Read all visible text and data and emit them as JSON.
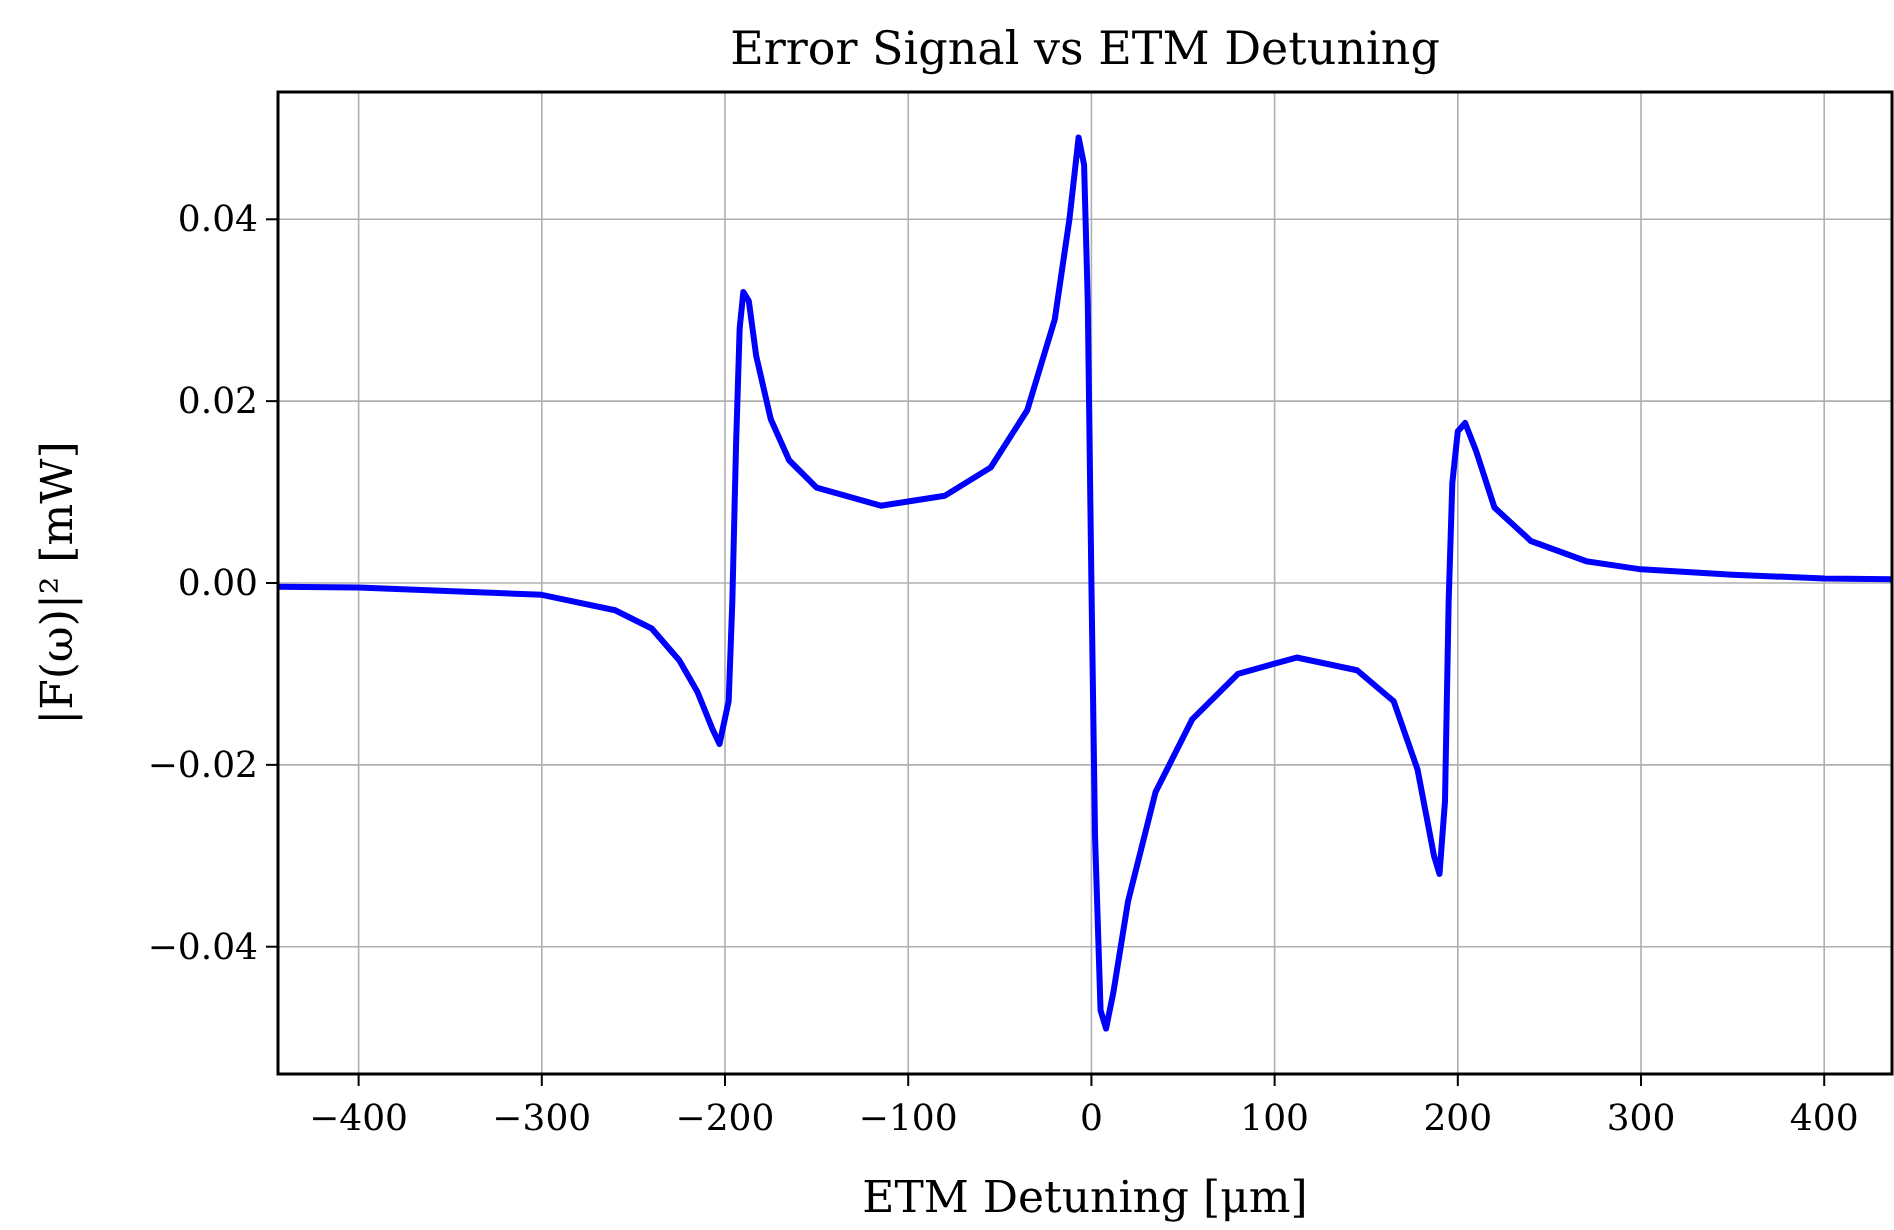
{
  "chart_data": {
    "type": "line",
    "title": "Error Signal vs ETM Detuning",
    "xlabel": "ETM Detuning [μm]",
    "ylabel": "|F(ω)|² [mW]",
    "xlim": [
      -444,
      437
    ],
    "ylim": [
      -0.054,
      0.054
    ],
    "xticks": [
      {
        "value": -400,
        "label": "−400"
      },
      {
        "value": -300,
        "label": "−300"
      },
      {
        "value": -200,
        "label": "−200"
      },
      {
        "value": -100,
        "label": "−100"
      },
      0,
      100,
      200,
      300,
      400
    ],
    "yticks": [
      {
        "value": -0.04,
        "label": "−0.04"
      },
      {
        "value": -0.02,
        "label": "−0.02"
      },
      {
        "value": 0,
        "label": "0.00"
      },
      {
        "value": 0.02,
        "label": "0.02"
      },
      {
        "value": 0.04,
        "label": "0.04"
      }
    ],
    "grid": true,
    "marker": "none",
    "line_style": "solid",
    "series": [
      {
        "color": "#0000ff",
        "x": [
          -444,
          -400,
          -300,
          -260,
          -240,
          -225,
          -215,
          -207,
          -203,
          -198,
          -196,
          -194,
          -192,
          -190,
          -187,
          -183,
          -175,
          -165,
          -150,
          -115,
          -80,
          -55,
          -35,
          -20,
          -12,
          -7,
          -4,
          -2,
          0,
          2,
          5,
          8,
          12,
          20,
          35,
          55,
          80,
          112,
          145,
          165,
          178,
          187,
          190,
          193,
          195,
          197,
          200,
          204,
          210,
          220,
          240,
          270,
          300,
          350,
          400,
          437
        ],
        "values": [
          -0.0004,
          -0.0005,
          -0.0013,
          -0.003,
          -0.005,
          -0.0085,
          -0.012,
          -0.016,
          -0.0177,
          -0.013,
          -0.002,
          0.015,
          0.028,
          0.032,
          0.031,
          0.025,
          0.018,
          0.0135,
          0.0105,
          0.0085,
          0.0096,
          0.0127,
          0.019,
          0.029,
          0.04,
          0.049,
          0.046,
          0.031,
          0,
          -0.028,
          -0.047,
          -0.049,
          -0.045,
          -0.035,
          -0.023,
          -0.015,
          -0.01,
          -0.0082,
          -0.0096,
          -0.013,
          -0.0205,
          -0.03,
          -0.032,
          -0.024,
          -0.002,
          0.011,
          0.0167,
          0.0176,
          0.0145,
          0.0083,
          0.0046,
          0.0024,
          0.0015,
          0.0009,
          0.0005,
          0.0004
        ]
      }
    ]
  }
}
